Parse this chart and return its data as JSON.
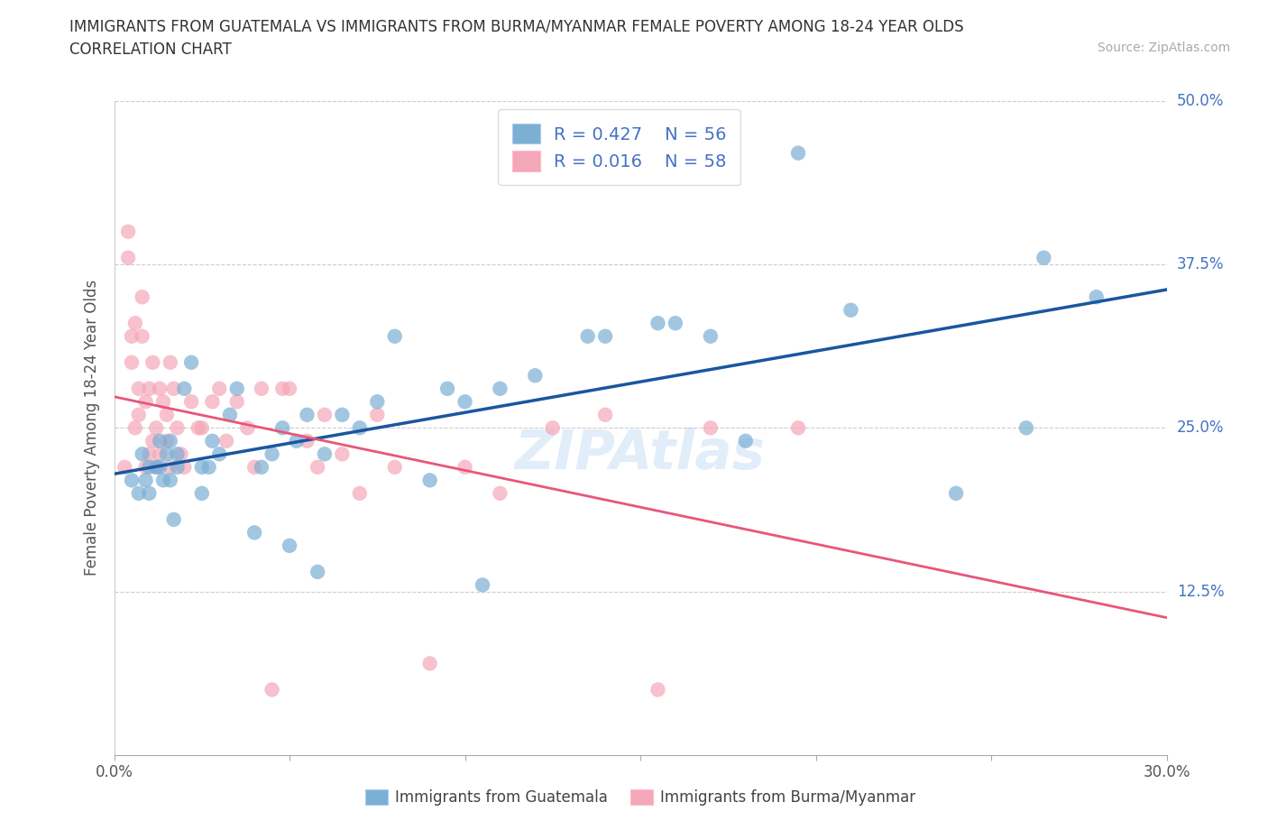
{
  "title_line1": "IMMIGRANTS FROM GUATEMALA VS IMMIGRANTS FROM BURMA/MYANMAR FEMALE POVERTY AMONG 18-24 YEAR OLDS",
  "title_line2": "CORRELATION CHART",
  "source": "Source: ZipAtlas.com",
  "ylabel": "Female Poverty Among 18-24 Year Olds",
  "legend_label_guatemala": "Immigrants from Guatemala",
  "legend_label_burma": "Immigrants from Burma/Myanmar",
  "xlim": [
    0.0,
    0.3
  ],
  "ylim": [
    0.0,
    0.5
  ],
  "xticks": [
    0.0,
    0.05,
    0.1,
    0.15,
    0.2,
    0.25,
    0.3
  ],
  "xtick_labels_show": [
    "0.0%",
    "30.0%"
  ],
  "ytick_vals": [
    0.0,
    0.125,
    0.25,
    0.375,
    0.5
  ],
  "ytick_labels_right": [
    "",
    "12.5%",
    "25.0%",
    "37.5%",
    "50.0%"
  ],
  "guatemala_R": 0.427,
  "guatemala_N": 56,
  "burma_R": 0.016,
  "burma_N": 58,
  "color_guatemala": "#7BAFD4",
  "color_burma": "#F4A7B9",
  "color_line_guatemala": "#1A56A0",
  "color_line_burma": "#E8567A",
  "color_text_right": "#4472C4",
  "color_text_legend": "#4472C4",
  "background_color": "#FFFFFF",
  "guatemala_x": [
    0.005,
    0.007,
    0.008,
    0.009,
    0.01,
    0.01,
    0.012,
    0.013,
    0.013,
    0.014,
    0.015,
    0.016,
    0.016,
    0.017,
    0.018,
    0.018,
    0.02,
    0.022,
    0.025,
    0.025,
    0.027,
    0.028,
    0.03,
    0.033,
    0.035,
    0.04,
    0.042,
    0.045,
    0.048,
    0.05,
    0.052,
    0.055,
    0.058,
    0.06,
    0.065,
    0.07,
    0.075,
    0.08,
    0.09,
    0.095,
    0.1,
    0.105,
    0.11,
    0.12,
    0.135,
    0.14,
    0.155,
    0.16,
    0.17,
    0.18,
    0.195,
    0.21,
    0.24,
    0.26,
    0.265,
    0.28
  ],
  "guatemala_y": [
    0.21,
    0.2,
    0.23,
    0.21,
    0.22,
    0.2,
    0.22,
    0.24,
    0.22,
    0.21,
    0.23,
    0.24,
    0.21,
    0.18,
    0.22,
    0.23,
    0.28,
    0.3,
    0.2,
    0.22,
    0.22,
    0.24,
    0.23,
    0.26,
    0.28,
    0.17,
    0.22,
    0.23,
    0.25,
    0.16,
    0.24,
    0.26,
    0.14,
    0.23,
    0.26,
    0.25,
    0.27,
    0.32,
    0.21,
    0.28,
    0.27,
    0.13,
    0.28,
    0.29,
    0.32,
    0.32,
    0.33,
    0.33,
    0.32,
    0.24,
    0.46,
    0.34,
    0.2,
    0.25,
    0.38,
    0.35
  ],
  "burma_x": [
    0.003,
    0.004,
    0.004,
    0.005,
    0.005,
    0.006,
    0.006,
    0.007,
    0.007,
    0.008,
    0.008,
    0.009,
    0.009,
    0.01,
    0.01,
    0.011,
    0.011,
    0.012,
    0.012,
    0.013,
    0.013,
    0.014,
    0.015,
    0.015,
    0.016,
    0.016,
    0.017,
    0.018,
    0.019,
    0.02,
    0.022,
    0.024,
    0.025,
    0.028,
    0.03,
    0.032,
    0.035,
    0.038,
    0.04,
    0.042,
    0.045,
    0.048,
    0.05,
    0.055,
    0.058,
    0.06,
    0.065,
    0.07,
    0.075,
    0.08,
    0.09,
    0.1,
    0.11,
    0.125,
    0.14,
    0.155,
    0.17,
    0.195
  ],
  "burma_y": [
    0.22,
    0.38,
    0.4,
    0.3,
    0.32,
    0.25,
    0.33,
    0.26,
    0.28,
    0.32,
    0.35,
    0.22,
    0.27,
    0.23,
    0.28,
    0.24,
    0.3,
    0.25,
    0.22,
    0.23,
    0.28,
    0.27,
    0.24,
    0.26,
    0.22,
    0.3,
    0.28,
    0.25,
    0.23,
    0.22,
    0.27,
    0.25,
    0.25,
    0.27,
    0.28,
    0.24,
    0.27,
    0.25,
    0.22,
    0.28,
    0.05,
    0.28,
    0.28,
    0.24,
    0.22,
    0.26,
    0.23,
    0.2,
    0.26,
    0.22,
    0.07,
    0.22,
    0.2,
    0.25,
    0.26,
    0.05,
    0.25,
    0.25
  ]
}
